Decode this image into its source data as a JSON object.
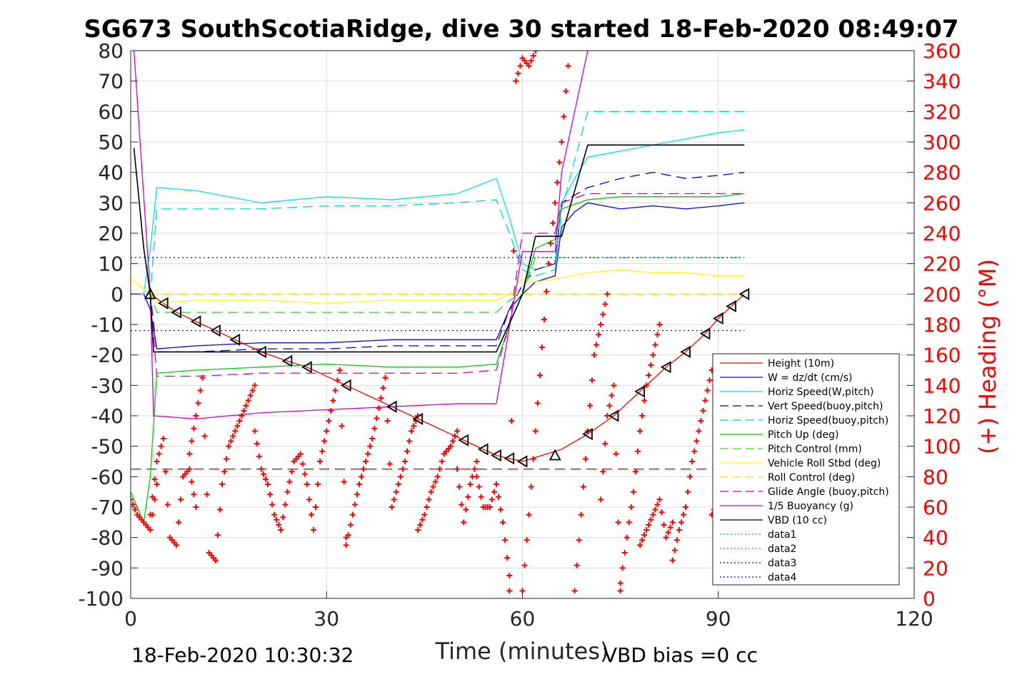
{
  "chart_data": {
    "type": "line",
    "title": "SG673 SouthScotiaRidge, dive 30 started 18-Feb-2020 08:49:07",
    "xlabel": "Time (minutes)",
    "ylabel_left": "",
    "ylabel_right": "(+) Heading (°M)",
    "xlim": [
      0,
      120
    ],
    "ylim_left": [
      -100,
      80
    ],
    "ylim_right": [
      0,
      360
    ],
    "xticks": [
      0,
      30,
      60,
      90,
      120
    ],
    "yticks_left": [
      80,
      70,
      60,
      50,
      40,
      30,
      20,
      10,
      0,
      -10,
      -20,
      -30,
      -40,
      -50,
      -60,
      -70,
      -80,
      -90,
      -100
    ],
    "yticks_right": [
      360,
      340,
      320,
      300,
      280,
      260,
      240,
      220,
      200,
      180,
      160,
      140,
      120,
      100,
      80,
      60,
      40,
      20,
      0
    ],
    "grid": true,
    "legend_position": "lower-right",
    "footer_left": "18-Feb-2020 10:30:32",
    "footer_right": "VBD bias =0 cc",
    "series": [
      {
        "name": "Height (10m)",
        "color": "#ff0000",
        "style": "solid",
        "axis": "left",
        "x": [
          3,
          5,
          7,
          10,
          13,
          16,
          20,
          24,
          27,
          30,
          33,
          36,
          40,
          44,
          48,
          51,
          54,
          56,
          58,
          60,
          63,
          66,
          70,
          74,
          78,
          82,
          85,
          88,
          90,
          92,
          94
        ],
        "y": [
          0,
          -3,
          -6,
          -9,
          -12,
          -15,
          -19,
          -22,
          -24,
          -27,
          -30,
          -33,
          -37,
          -41,
          -45,
          -48,
          -51,
          -53,
          -54,
          -55,
          -53,
          -51,
          -46,
          -40,
          -32,
          -24,
          -19,
          -13,
          -8,
          -4,
          0
        ]
      },
      {
        "name": "W = dz/dt (cm/s)",
        "color": "#0000ff",
        "style": "solid",
        "axis": "left",
        "x": [
          0,
          2,
          3,
          4,
          10,
          20,
          30,
          40,
          50,
          56,
          58,
          60,
          62,
          65,
          66,
          68,
          70,
          75,
          80,
          85,
          90,
          94
        ],
        "y": [
          0,
          0,
          -5,
          -18,
          -17,
          -16,
          -16,
          -15,
          -15,
          -15,
          -5,
          0,
          4,
          6,
          22,
          27,
          30,
          28,
          29,
          28,
          29,
          30
        ]
      },
      {
        "name": "Horiz Speed(W,pitch)",
        "color": "#00e5e5",
        "style": "solid",
        "axis": "left",
        "x": [
          0,
          2,
          3,
          4,
          10,
          20,
          30,
          40,
          50,
          56,
          58,
          60,
          62,
          65,
          66,
          68,
          70,
          75,
          80,
          85,
          90,
          94
        ],
        "y": [
          0,
          0,
          15,
          35,
          34,
          30,
          32,
          31,
          33,
          38,
          25,
          10,
          8,
          10,
          30,
          38,
          45,
          47,
          49,
          51,
          53,
          54
        ]
      },
      {
        "name": "Vert Speed(buoy,pitch)",
        "color": "#0000cc",
        "style": "dashed",
        "axis": "left",
        "x": [
          0,
          3,
          4,
          10,
          20,
          30,
          40,
          50,
          56,
          58,
          60,
          62,
          65,
          66,
          70,
          75,
          80,
          85,
          90,
          94
        ],
        "y": [
          0,
          0,
          -19,
          -19,
          -18,
          -18,
          -17,
          -17,
          -17,
          -5,
          3,
          8,
          10,
          30,
          35,
          38,
          40,
          38,
          39,
          40
        ]
      },
      {
        "name": "Horiz Speed(buoy,pitch)",
        "color": "#00d5d5",
        "style": "dashed",
        "axis": "left",
        "x": [
          0,
          3,
          4,
          10,
          20,
          30,
          40,
          50,
          56,
          58,
          60,
          62,
          65,
          66,
          70,
          75,
          80,
          85,
          90,
          94
        ],
        "y": [
          0,
          0,
          28,
          28,
          28,
          29,
          29,
          30,
          31,
          20,
          8,
          6,
          8,
          28,
          60,
          60,
          60,
          60,
          60,
          60
        ]
      },
      {
        "name": "Pitch Up (deg)",
        "color": "#00cc00",
        "style": "solid",
        "axis": "left",
        "x": [
          0,
          2,
          3,
          4,
          10,
          20,
          30,
          40,
          50,
          56,
          58,
          60,
          62,
          65,
          66,
          70,
          75,
          80,
          85,
          90,
          94
        ],
        "y": [
          -65,
          -75,
          -60,
          -26,
          -25,
          -24,
          -23,
          -24,
          -24,
          -23,
          -10,
          0,
          15,
          18,
          28,
          31,
          32,
          32,
          32,
          32,
          33
        ]
      },
      {
        "name": "Pitch Control (mm)",
        "color": "#33dd33",
        "style": "dashed",
        "axis": "left",
        "x": [
          0,
          3,
          4,
          10,
          20,
          30,
          40,
          50,
          56,
          58,
          60,
          62,
          65,
          66,
          70,
          94
        ],
        "y": [
          0,
          0,
          -6,
          -6,
          -6,
          -6,
          -6,
          -6,
          -6,
          -2,
          0,
          12,
          12,
          12,
          12,
          12
        ]
      },
      {
        "name": "Vehicle Roll Stbd (deg)",
        "color": "#ffff00",
        "style": "solid",
        "axis": "left",
        "x": [
          0,
          3,
          4,
          10,
          20,
          30,
          40,
          50,
          56,
          58,
          60,
          62,
          65,
          70,
          75,
          80,
          85,
          90,
          94
        ],
        "y": [
          5,
          0,
          -3,
          -2,
          -2,
          -3,
          -2,
          -2,
          -2,
          0,
          5,
          4,
          5,
          7,
          8,
          7,
          7,
          6,
          6
        ]
      },
      {
        "name": "Roll Control (deg)",
        "color": "#e6e600",
        "style": "dashed",
        "axis": "left",
        "x": [
          0,
          94
        ],
        "y": [
          0,
          0
        ]
      },
      {
        "name": "Glide Angle (buoy,pitch)",
        "color": "#cc00cc",
        "style": "dashed",
        "axis": "left",
        "x": [
          0,
          3,
          4,
          10,
          20,
          30,
          40,
          50,
          56,
          58,
          60,
          62,
          65,
          66,
          70,
          75,
          80,
          85,
          90,
          94
        ],
        "y": [
          0,
          0,
          -27,
          -27,
          -26,
          -26,
          -26,
          -26,
          -25,
          -10,
          20,
          20,
          20,
          30,
          33,
          33,
          33,
          33,
          33,
          33
        ]
      },
      {
        "name": "1/5 Buoyancy (g)",
        "color": "#cc00cc",
        "style": "solid",
        "axis": "left",
        "x": [
          0.5,
          3,
          3.5,
          10,
          20,
          30,
          40,
          50,
          56,
          60,
          62,
          65,
          66,
          67,
          68,
          70
        ],
        "y": [
          80,
          0,
          -40,
          -41,
          -39,
          -38,
          -37,
          -36,
          -36,
          14,
          14,
          14,
          40,
          50,
          60,
          80
        ]
      },
      {
        "name": "VBD (10 cc)",
        "color": "#000000",
        "style": "solid",
        "axis": "left",
        "x": [
          0.5,
          2,
          3,
          3.5,
          10,
          20,
          30,
          40,
          50,
          56,
          59,
          60,
          62,
          65,
          66,
          70,
          80,
          94
        ],
        "y": [
          48,
          15,
          0,
          -19,
          -19,
          -19,
          -19,
          -19,
          -19,
          -19,
          -5,
          0,
          19,
          19,
          19,
          49,
          49,
          49
        ]
      },
      {
        "name": "data1",
        "color": "#00cc00",
        "style": "dotted",
        "axis": "left",
        "x": [],
        "y": []
      },
      {
        "name": "data2",
        "color": "#00cc00",
        "style": "dotted",
        "axis": "left",
        "x": [],
        "y": []
      },
      {
        "name": "data3",
        "color": "#0000cc",
        "style": "dotted",
        "axis": "left",
        "x": [
          0,
          94
        ],
        "y": [
          12,
          12
        ]
      },
      {
        "name": "data4",
        "color": "#0000cc",
        "style": "dotted",
        "axis": "left",
        "x": [
          0,
          94
        ],
        "y": [
          -12,
          -12
        ]
      }
    ],
    "extra_lines": [
      {
        "color": "#ff0000",
        "style": "dashed",
        "axis": "left",
        "x": [
          0,
          94
        ],
        "y": [
          -57.5,
          -57.5
        ]
      }
    ],
    "heading": {
      "color": "#ff0000",
      "marker": "+",
      "axis": "right",
      "segments": [
        {
          "x": [
            0,
            1,
            2,
            3,
            4
          ],
          "y": [
            65,
            55,
            50,
            45,
            75
          ]
        },
        {
          "x": [
            3,
            4,
            5,
            6,
            7,
            8,
            9,
            10
          ],
          "y": [
            55,
            90,
            105,
            40,
            35,
            80,
            85,
            60
          ]
        },
        {
          "x": [
            9,
            10,
            11,
            12,
            13
          ],
          "y": [
            95,
            120,
            145,
            30,
            25
          ]
        },
        {
          "x": [
            13,
            14,
            15,
            16,
            17,
            18,
            19
          ],
          "y": [
            25,
            75,
            100,
            110,
            120,
            130,
            140
          ]
        },
        {
          "x": [
            19,
            20,
            21,
            22,
            23
          ],
          "y": [
            110,
            85,
            75,
            55,
            45
          ]
        },
        {
          "x": [
            23,
            24,
            25,
            26,
            27,
            28
          ],
          "y": [
            45,
            70,
            90,
            95,
            75,
            45
          ]
        },
        {
          "x": [
            28,
            29,
            30,
            31,
            32,
            33
          ],
          "y": [
            45,
            90,
            110,
            130,
            150,
            40
          ]
        },
        {
          "x": [
            33,
            34,
            35,
            36,
            37,
            38,
            39
          ],
          "y": [
            35,
            55,
            75,
            90,
            105,
            125,
            145
          ]
        },
        {
          "x": [
            39,
            40,
            41,
            42,
            43,
            44
          ],
          "y": [
            145,
            60,
            75,
            90,
            110,
            120
          ]
        },
        {
          "x": [
            44,
            45,
            46,
            47,
            48,
            49,
            50
          ],
          "y": [
            45,
            55,
            70,
            80,
            95,
            100,
            110
          ]
        },
        {
          "x": [
            50,
            51,
            52,
            53
          ],
          "y": [
            85,
            50,
            75,
            90
          ]
        },
        {
          "x": [
            53,
            54,
            55,
            56,
            57,
            58
          ],
          "y": [
            80,
            60,
            60,
            75,
            50,
            15
          ]
        },
        {
          "x": [
            58,
            59,
            60,
            61,
            62
          ],
          "y": [
            5,
            340,
            355,
            350,
            360
          ]
        },
        {
          "x": [
            60,
            61,
            62,
            63,
            64,
            65,
            66,
            67
          ],
          "y": [
            5,
            55,
            110,
            165,
            220,
            260,
            300,
            350
          ]
        },
        {
          "x": [
            68,
            69,
            70,
            71,
            72,
            73
          ],
          "y": [
            5,
            55,
            110,
            160,
            180,
            200
          ]
        },
        {
          "x": [
            72,
            73,
            74,
            75
          ],
          "y": [
            65,
            120,
            140,
            5
          ]
        },
        {
          "x": [
            75,
            76,
            77,
            78,
            79,
            80,
            81
          ],
          "y": [
            10,
            40,
            70,
            110,
            140,
            160,
            180
          ]
        },
        {
          "x": [
            78,
            79,
            80,
            81,
            82,
            83
          ],
          "y": [
            35,
            45,
            55,
            65,
            40,
            50
          ]
        },
        {
          "x": [
            83,
            84,
            85,
            86,
            87,
            88,
            89
          ],
          "y": [
            25,
            45,
            60,
            90,
            110,
            130,
            150
          ]
        },
        {
          "x": [
            89,
            90,
            91,
            92,
            93
          ],
          "y": [
            55,
            65,
            75,
            85,
            95
          ]
        }
      ]
    },
    "triangles_left": {
      "color": "#000000",
      "x": [
        5,
        7,
        10,
        13,
        16,
        20,
        24,
        27,
        33,
        40,
        44,
        51,
        54,
        56,
        58,
        60,
        70,
        74,
        78,
        82,
        85,
        88,
        90,
        92,
        94
      ],
      "y": [
        -3,
        -6,
        -9,
        -12,
        -15,
        -19,
        -22,
        -24,
        -30,
        -37,
        -41,
        -48,
        -51,
        -53,
        -54,
        -55,
        -46,
        -40,
        -32,
        -24,
        -19,
        -13,
        -8,
        -4,
        0
      ]
    },
    "triangles_up": {
      "color": "#000000",
      "x": [
        3,
        65
      ],
      "y": [
        0,
        -53
      ]
    }
  }
}
